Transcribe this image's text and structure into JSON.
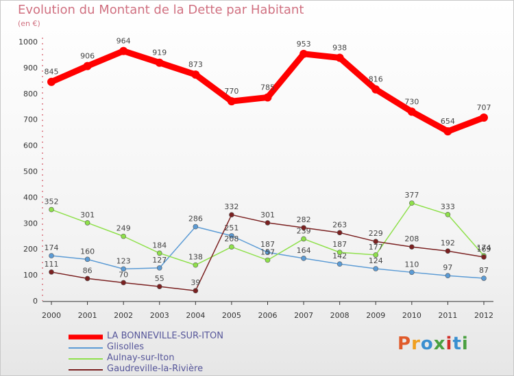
{
  "title": "Evolution du Montant de la Dette par Habitant",
  "subtitle": "(en €)",
  "logo": {
    "text": "Proxiti",
    "colors": [
      "#e05a2a",
      "#f0a020",
      "#3a8fd0",
      "#4aa040",
      "#d0302a",
      "#3a8fd0",
      "#4aa040"
    ]
  },
  "chart_data": {
    "type": "line",
    "x": [
      2000,
      2001,
      2002,
      2003,
      2004,
      2005,
      2006,
      2007,
      2008,
      2009,
      2010,
      2011,
      2012
    ],
    "ylim": [
      0,
      1000
    ],
    "yticks": [
      0,
      100,
      200,
      300,
      400,
      500,
      600,
      700,
      800,
      900,
      1000
    ],
    "grid": false,
    "legend_position": "bottom-left",
    "series": [
      {
        "name": "LA BONNEVILLE-SUR-ITON",
        "color": "#ff0000",
        "values": [
          845,
          906,
          964,
          919,
          873,
          770,
          785,
          953,
          938,
          816,
          730,
          654,
          707
        ]
      },
      {
        "name": "Glisolles",
        "color": "#5b9bd5",
        "values": [
          174,
          160,
          123,
          127,
          286,
          251,
          187,
          164,
          142,
          124,
          110,
          97,
          87
        ]
      },
      {
        "name": "Aulnay-sur-Iton",
        "color": "#8ee04a",
        "values": [
          352,
          301,
          249,
          184,
          138,
          208,
          157,
          239,
          187,
          177,
          377,
          333,
          174
        ]
      },
      {
        "name": "Gaudreville-la-Rivière",
        "color": "#7a2020",
        "values": [
          111,
          86,
          70,
          55,
          39,
          332,
          301,
          282,
          263,
          229,
          208,
          192,
          169
        ]
      }
    ]
  }
}
